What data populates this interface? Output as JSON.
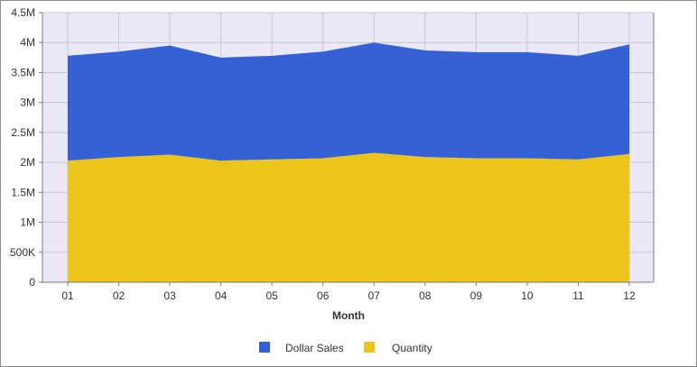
{
  "chart_data": {
    "type": "area",
    "stacked": true,
    "xlabel": "Month",
    "ylabel": "",
    "categories": [
      "01",
      "02",
      "03",
      "04",
      "05",
      "06",
      "07",
      "08",
      "09",
      "10",
      "11",
      "12"
    ],
    "ylim": [
      0,
      4500000
    ],
    "yticks": [
      0,
      500000,
      1000000,
      1500000,
      2000000,
      2500000,
      3000000,
      3500000,
      4000000,
      4500000
    ],
    "ytick_labels": [
      "0",
      "500K",
      "1M",
      "1.5M",
      "2M",
      "2.5M",
      "3M",
      "3.5M",
      "4M",
      "4.5M"
    ],
    "grid": true,
    "legend_position": "bottom",
    "series": [
      {
        "name": "Quantity",
        "color": "#ebc41c",
        "values": [
          2030000,
          2090000,
          2130000,
          2030000,
          2050000,
          2070000,
          2160000,
          2090000,
          2070000,
          2070000,
          2050000,
          2140000
        ]
      },
      {
        "name": "Dollar Sales",
        "color": "#3461d6",
        "values": [
          1750000,
          1760000,
          1820000,
          1720000,
          1730000,
          1780000,
          1840000,
          1780000,
          1770000,
          1770000,
          1730000,
          1830000
        ]
      }
    ],
    "legend": [
      {
        "label": "Dollar Sales",
        "color": "#3461d6"
      },
      {
        "label": "Quantity",
        "color": "#ebc41c"
      }
    ],
    "plot_background": "#ebe9f6",
    "grid_color": "#c8c6d6"
  }
}
